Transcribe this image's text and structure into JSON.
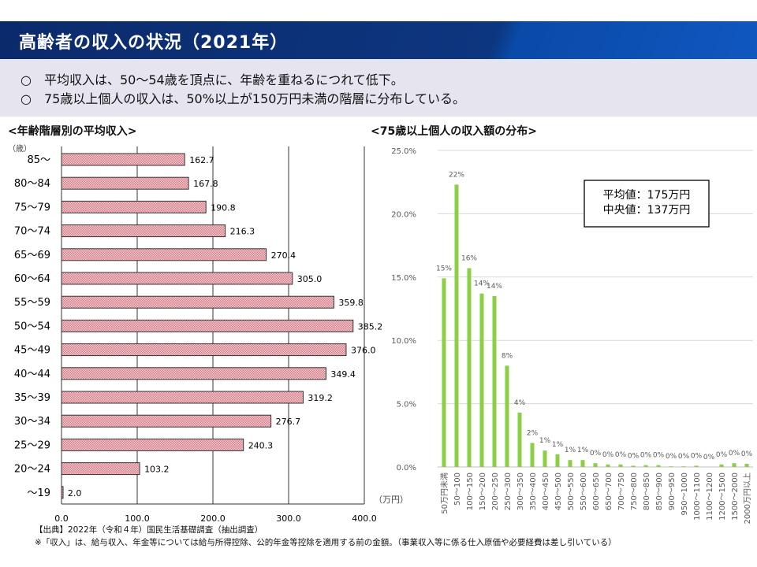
{
  "header": {
    "title": "高齢者の収入の状況（2021年）"
  },
  "summary": [
    "○　平均収入は、50～54歳を頂点に、年齢を重ねるにつれて低下。",
    "○　75歳以上個人の収入は、50%以上が150万円未満の階層に分布している。"
  ],
  "footnotes": {
    "source": "【出典】2022年（令和４年）国民生活基礎調査（抽出調査）",
    "note": "※「収入」は、給与収入、年金等については給与所得控除、公的年金等控除を適用する前の金額。（事業収入等に係る仕入原価や必要経費は差し引いている）"
  },
  "chart_data": [
    {
      "type": "bar",
      "orientation": "horizontal",
      "title": "<年齢階層別の平均収入>",
      "ylabel": "（歳）",
      "xlabel": "（万円）",
      "xlim": [
        0,
        400
      ],
      "xticks": [
        "0.0",
        "100.0",
        "200.0",
        "300.0",
        "400.0"
      ],
      "grid": true,
      "bar_color": "#e8a0a8",
      "categories": [
        "85～",
        "80～84",
        "75～79",
        "70～74",
        "65～69",
        "60～64",
        "55～59",
        "50～54",
        "45～49",
        "40～44",
        "35～39",
        "30～34",
        "25～29",
        "20～24",
        "～19"
      ],
      "values": [
        162.7,
        167.8,
        190.8,
        216.3,
        270.4,
        305.0,
        359.8,
        385.2,
        376.0,
        349.4,
        319.2,
        276.7,
        240.3,
        103.2,
        2.0
      ],
      "labels": [
        "162.7",
        "167.8",
        "190.8",
        "216.3",
        "270.4",
        "305.0",
        "359.8",
        "385.2",
        "376.0",
        "349.4",
        "319.2",
        "276.7",
        "240.3",
        "103.2",
        "2.0"
      ]
    },
    {
      "type": "bar",
      "title": "<75歳以上個人の収入額の分布>",
      "ylim": [
        0,
        25
      ],
      "yticks": [
        "0.0%",
        "5.0%",
        "10.0%",
        "15.0%",
        "20.0%",
        "25.0%"
      ],
      "grid": true,
      "bar_color": "#8ccf45",
      "categories": [
        "50万円未満",
        "50～100",
        "100～150",
        "150～200",
        "200～250",
        "250～300",
        "300～350",
        "350～400",
        "400～450",
        "450～500",
        "500～550",
        "550～600",
        "600～650",
        "650～700",
        "700～750",
        "750～800",
        "800～850",
        "850～900",
        "900～950",
        "950～1000",
        "1000～1100",
        "1100～1200",
        "1200～1500",
        "1500～2000",
        "2000万円以上"
      ],
      "values": [
        14.9,
        22.3,
        15.7,
        13.7,
        13.5,
        8.0,
        4.3,
        1.9,
        1.3,
        1.0,
        0.55,
        0.55,
        0.3,
        0.2,
        0.2,
        0.1,
        0.15,
        0.15,
        0.05,
        0.05,
        0.1,
        0.0,
        0.2,
        0.3,
        0.25
      ],
      "labels": [
        "15%",
        "22%",
        "16%",
        "14%",
        "14%",
        "8%",
        "4%",
        "2%",
        "1%",
        "1%",
        "1%",
        "1%",
        "0%",
        "0%",
        "0%",
        "0%",
        "0%",
        "0%",
        "0%",
        "0%",
        "0%",
        "0%",
        "0%",
        "0%",
        "0%"
      ],
      "annotation": [
        "平均値：175万円",
        "中央値：137万円"
      ]
    }
  ]
}
